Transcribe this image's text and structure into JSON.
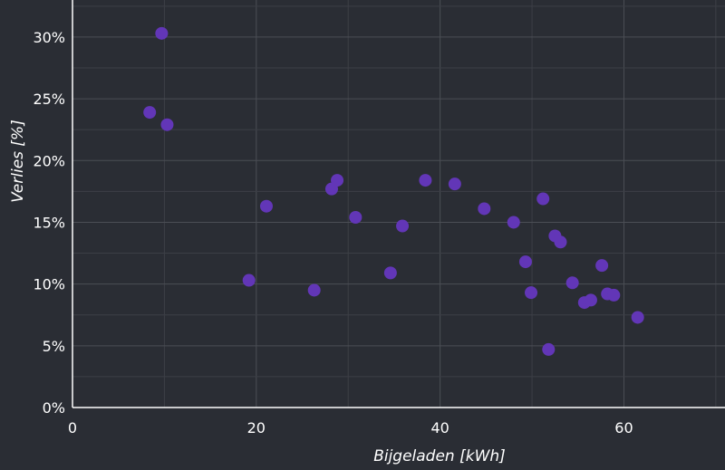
{
  "chart_data": {
    "type": "scatter",
    "title": "",
    "xlabel": "Bijgeladen [kWh]",
    "ylabel": "Verlies [%]",
    "xlim": [
      0,
      71
    ],
    "ylim": [
      0,
      33
    ],
    "x_ticks": [
      0,
      20,
      40,
      60
    ],
    "y_ticks": [
      0,
      5,
      10,
      15,
      20,
      25,
      30
    ],
    "y_tick_labels": [
      "0%",
      "5%",
      "10%",
      "15%",
      "20%",
      "25%",
      "30%"
    ],
    "x_tick_labels": [
      "0",
      "20",
      "40",
      "60"
    ],
    "grid": true,
    "legend": "none",
    "point_color": "#6236b7",
    "series": [
      {
        "x": [
          8.4,
          9.7,
          10.3,
          19.2,
          21.1,
          26.3,
          28.2,
          28.8,
          30.8,
          34.6,
          35.9,
          38.4,
          41.6,
          44.8,
          48.0,
          49.3,
          49.9,
          51.2,
          51.8,
          52.5,
          53.1,
          54.4,
          55.7,
          56.4,
          57.6,
          58.2,
          58.9,
          61.5
        ],
        "y": [
          23.9,
          30.3,
          22.9,
          10.3,
          16.3,
          9.5,
          17.7,
          18.4,
          15.4,
          10.9,
          14.7,
          18.4,
          18.1,
          16.1,
          15.0,
          11.8,
          9.3,
          16.9,
          4.7,
          13.9,
          13.4,
          10.1,
          8.5,
          8.7,
          11.5,
          9.2,
          9.1,
          7.3
        ]
      }
    ]
  }
}
